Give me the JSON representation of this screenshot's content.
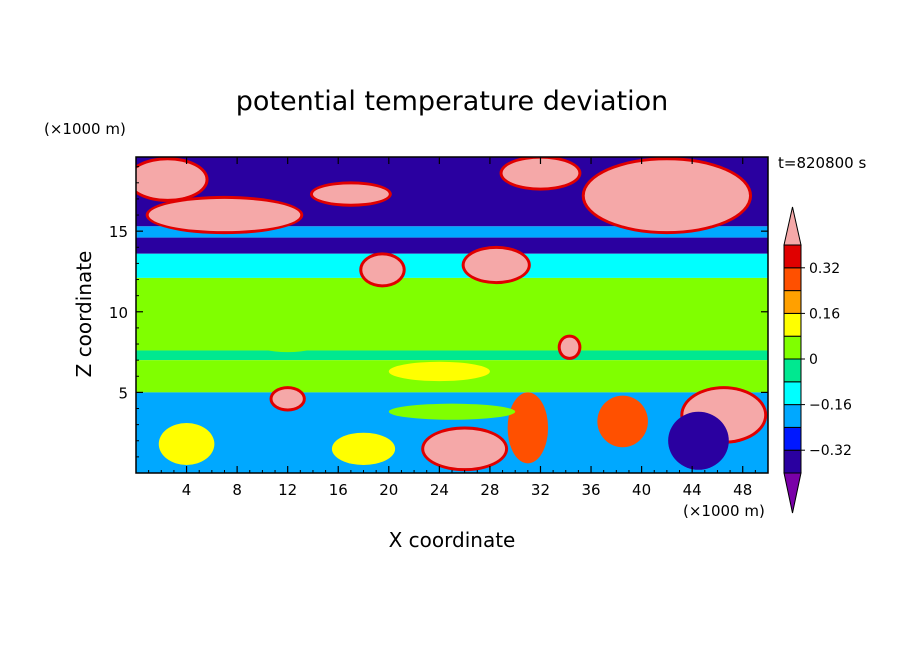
{
  "chart_data": {
    "type": "heatmap",
    "title": "potential temperature deviation",
    "xlabel": "X coordinate",
    "ylabel": "Z coordinate",
    "x_unit": "(×1000 m)",
    "y_unit": "(×1000 m)",
    "time_label": "t=820800 s",
    "xlim": [
      0,
      50
    ],
    "ylim": [
      0,
      19.6
    ],
    "x_ticks": [
      4,
      8,
      12,
      16,
      20,
      24,
      28,
      32,
      36,
      40,
      44,
      48
    ],
    "y_ticks": [
      5,
      10,
      15
    ],
    "colorbar": {
      "levels": [
        -0.4,
        -0.32,
        -0.24,
        -0.16,
        -0.08,
        0,
        0.08,
        0.16,
        0.24,
        0.32,
        0.4
      ],
      "labels": [
        "0.32",
        "0.16",
        "0",
        "−0.16",
        "−0.32"
      ],
      "label_values": [
        0.32,
        0.16,
        0,
        -0.16,
        -0.32
      ],
      "colors": [
        "#7a00a8",
        "#2a00a0",
        "#0018ff",
        "#00a8ff",
        "#00ffff",
        "#00e890",
        "#80ff00",
        "#ffff00",
        "#ffa000",
        "#ff5000",
        "#e00000",
        "#f5a8a8"
      ],
      "extend": "both"
    },
    "bands": [
      {
        "z": [
          15.3,
          19.6
        ],
        "value": -0.38
      },
      {
        "z": [
          14.6,
          15.3
        ],
        "value": -0.2
      },
      {
        "z": [
          13.6,
          14.6
        ],
        "value": -0.38
      },
      {
        "z": [
          12.1,
          13.6
        ],
        "value": -0.14
      },
      {
        "z": [
          7.6,
          12.1
        ],
        "value": 0.04
      },
      {
        "z": [
          7.0,
          7.6
        ],
        "value": -0.05
      },
      {
        "z": [
          5.0,
          7.0
        ],
        "value": 0.03
      },
      {
        "z": [
          0,
          5.0
        ],
        "value": -0.2
      }
    ],
    "blobs": [
      {
        "x": 26,
        "z": 1.5,
        "rx": 3.2,
        "ry": 1.2,
        "value": 0.45
      },
      {
        "x": 31,
        "z": 2.8,
        "rx": 1.6,
        "ry": 2.2,
        "value": 0.3
      },
      {
        "x": 38.5,
        "z": 3.2,
        "rx": 2.0,
        "ry": 1.6,
        "value": 0.3
      },
      {
        "x": 46.5,
        "z": 3.6,
        "rx": 3.2,
        "ry": 1.6,
        "value": 0.45
      },
      {
        "x": 18,
        "z": 1.5,
        "rx": 2.5,
        "ry": 1.0,
        "value": 0.12
      },
      {
        "x": 4,
        "z": 1.8,
        "rx": 2.2,
        "ry": 1.3,
        "value": 0.1
      },
      {
        "x": 44.5,
        "z": 2.0,
        "rx": 2.4,
        "ry": 1.8,
        "value": -0.38
      },
      {
        "x": 12,
        "z": 4.6,
        "rx": 1.2,
        "ry": 0.6,
        "value": 0.45
      },
      {
        "x": 34.3,
        "z": 7.8,
        "rx": 0.7,
        "ry": 0.6,
        "value": 0.45
      },
      {
        "x": 28.5,
        "z": 12.9,
        "rx": 2.5,
        "ry": 1.0,
        "value": 0.45
      },
      {
        "x": 19.5,
        "z": 12.6,
        "rx": 1.6,
        "ry": 0.9,
        "value": 0.45
      },
      {
        "x": 7,
        "z": 16.0,
        "rx": 6.0,
        "ry": 1.0,
        "value": 0.45
      },
      {
        "x": 2.5,
        "z": 18.2,
        "rx": 3.0,
        "ry": 1.2,
        "value": 0.45
      },
      {
        "x": 42,
        "z": 17.2,
        "rx": 6.5,
        "ry": 2.2,
        "value": 0.45
      },
      {
        "x": 32,
        "z": 18.6,
        "rx": 3.0,
        "ry": 0.9,
        "value": 0.45
      },
      {
        "x": 17,
        "z": 17.3,
        "rx": 3.0,
        "ry": 0.6,
        "value": 0.45
      },
      {
        "x": 25,
        "z": 3.8,
        "rx": 5.0,
        "ry": 0.5,
        "value": 0.06
      },
      {
        "x": 24,
        "z": 6.3,
        "rx": 4.0,
        "ry": 0.6,
        "value": 0.14
      },
      {
        "x": 12,
        "z": 9.5,
        "rx": 5.0,
        "ry": 2.0,
        "value": 0.06
      }
    ]
  }
}
